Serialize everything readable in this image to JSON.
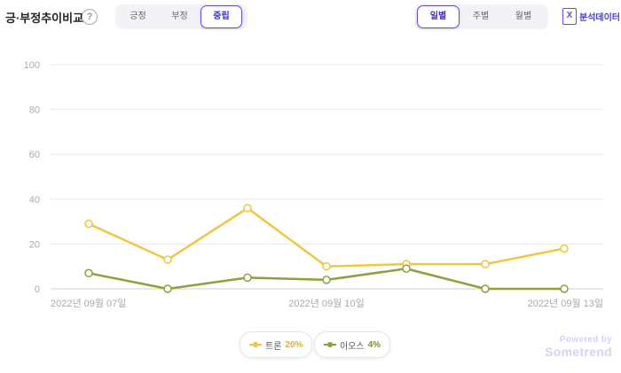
{
  "header": {
    "title": "긍·부정추이비교",
    "help_icon": "question-circle-icon"
  },
  "sentiment_tabs": {
    "items": [
      "긍정",
      "부정",
      "중립"
    ],
    "active": 2
  },
  "period_tabs": {
    "items": [
      "일별",
      "주별",
      "월별"
    ],
    "active": 0
  },
  "export": {
    "label": "분석데이터",
    "icon": "excel-icon",
    "icon_glyph": "X"
  },
  "legend": [
    {
      "name": "트론",
      "percent": "20%",
      "color": "#f0c544"
    },
    {
      "name": "이오스",
      "percent": "4%",
      "color": "#8ba23a"
    }
  ],
  "branding": {
    "line1": "Powered by",
    "line2": "Sometrend"
  },
  "chart_data": {
    "type": "line",
    "x": [
      "2022-09-07",
      "2022-09-08",
      "2022-09-09",
      "2022-09-10",
      "2022-09-11",
      "2022-09-12",
      "2022-09-13"
    ],
    "x_tick_labels": [
      "2022년 09월 07일",
      "2022년 09월 10일",
      "2022년 09월 13일"
    ],
    "x_tick_indices": [
      0,
      3,
      6
    ],
    "ylim": [
      0,
      100
    ],
    "y_ticks": [
      0,
      20,
      40,
      60,
      80,
      100
    ],
    "grid": true,
    "series": [
      {
        "name": "트론",
        "color": "#f0c544",
        "values": [
          29,
          13,
          36,
          10,
          11,
          11,
          18
        ]
      },
      {
        "name": "이오스",
        "color": "#8ba23a",
        "values": [
          7,
          0,
          5,
          4,
          9,
          0,
          0
        ]
      }
    ]
  }
}
